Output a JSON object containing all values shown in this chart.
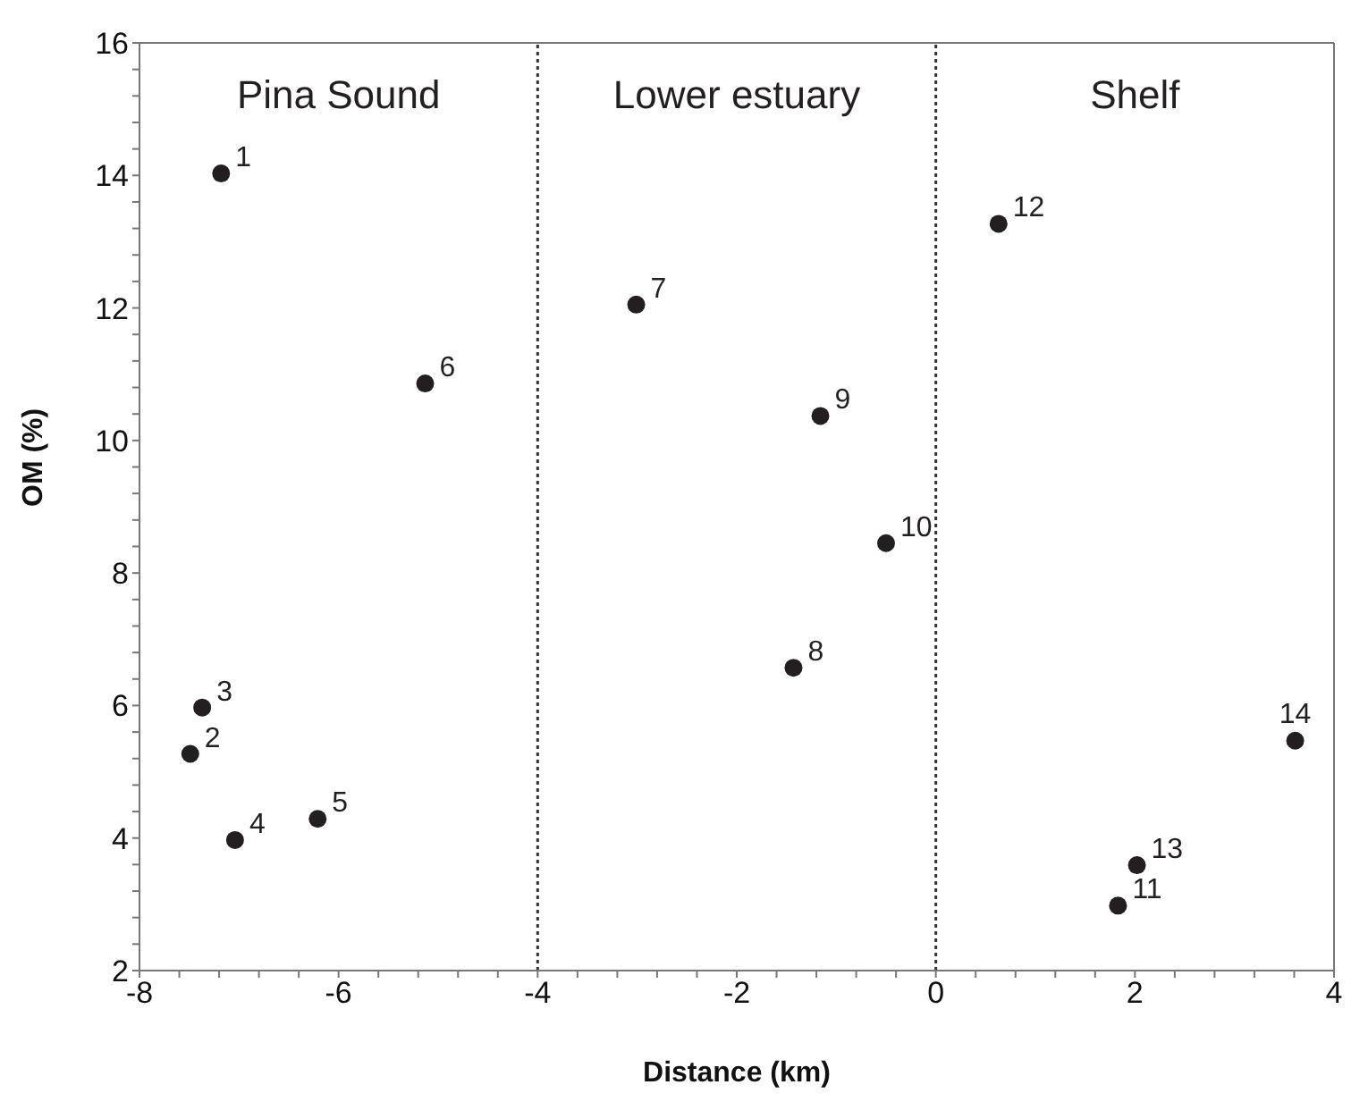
{
  "chart_data": {
    "type": "scatter",
    "xlabel": "Distance (km)",
    "ylabel": "OM (%)",
    "x": [
      -7.18,
      -7.49,
      -7.37,
      -7.04,
      -6.21,
      -5.13,
      -3.01,
      -1.43,
      -1.16,
      -0.5,
      1.83,
      0.63,
      2.02,
      3.61
    ],
    "series": [
      {
        "color": "#231f20",
        "values": [
          14.03,
          5.27,
          5.97,
          3.97,
          4.29,
          10.86,
          12.05,
          6.57,
          10.37,
          8.45,
          2.98,
          13.27,
          3.59,
          5.47
        ]
      }
    ],
    "marker": "circle",
    "xlim": [
      -8,
      4
    ],
    "ylim": [
      2,
      16
    ],
    "xticks": [
      -8,
      {
        "value": -7.6,
        "label": null
      },
      {
        "value": -7.2,
        "label": null
      },
      {
        "value": -6.8,
        "label": null
      },
      {
        "value": -6.4,
        "label": null
      },
      -6,
      {
        "value": -5.6,
        "label": null
      },
      {
        "value": -5.2,
        "label": null
      },
      {
        "value": -4.8,
        "label": null
      },
      {
        "value": -4.4,
        "label": null
      },
      -4,
      {
        "value": -3.6,
        "label": null
      },
      {
        "value": -3.2,
        "label": null
      },
      {
        "value": -2.8,
        "label": null
      },
      {
        "value": -2.4,
        "label": null
      },
      -2,
      {
        "value": -1.6,
        "label": null
      },
      {
        "value": -1.2,
        "label": null
      },
      {
        "value": -0.8,
        "label": null
      },
      {
        "value": -0.4,
        "label": null
      },
      0,
      {
        "value": 0.4,
        "label": null
      },
      {
        "value": 0.8,
        "label": null
      },
      {
        "value": 1.2,
        "label": null
      },
      {
        "value": 1.6,
        "label": null
      },
      2,
      {
        "value": 2.4,
        "label": null
      },
      {
        "value": 2.8,
        "label": null
      },
      {
        "value": 3.2,
        "label": null
      },
      {
        "value": 3.6,
        "label": null
      },
      4
    ],
    "yticks": [
      2,
      {
        "value": 2.4,
        "label": null
      },
      {
        "value": 2.8,
        "label": null
      },
      {
        "value": 3.2,
        "label": null
      },
      {
        "value": 3.6,
        "label": null
      },
      4,
      {
        "value": 4.4,
        "label": null
      },
      {
        "value": 4.8,
        "label": null
      },
      {
        "value": 5.2,
        "label": null
      },
      {
        "value": 5.6,
        "label": null
      },
      6,
      {
        "value": 6.4,
        "label": null
      },
      {
        "value": 6.8,
        "label": null
      },
      {
        "value": 7.2,
        "label": null
      },
      {
        "value": 7.6,
        "label": null
      },
      8,
      {
        "value": 8.4,
        "label": null
      },
      {
        "value": 8.8,
        "label": null
      },
      {
        "value": 9.2,
        "label": null
      },
      {
        "value": 9.6,
        "label": null
      },
      10,
      {
        "value": 10.4,
        "label": null
      },
      {
        "value": 10.8,
        "label": null
      },
      {
        "value": 11.2,
        "label": null
      },
      {
        "value": 11.6,
        "label": null
      },
      12,
      {
        "value": 12.4,
        "label": null
      },
      {
        "value": 12.8,
        "label": null
      },
      {
        "value": 13.2,
        "label": null
      },
      {
        "value": 13.6,
        "label": null
      },
      14,
      {
        "value": 14.4,
        "label": null
      },
      {
        "value": 14.8,
        "label": null
      },
      {
        "value": 15.2,
        "label": null
      },
      {
        "value": 15.6,
        "label": null
      },
      16
    ],
    "ref_lines": [
      {
        "axis": "x",
        "value": -4,
        "line_style": "dotted"
      },
      {
        "axis": "x",
        "value": 0,
        "line_style": "dotted"
      }
    ],
    "annotations": [
      "Pina Sound",
      "Lower estuary",
      "Shelf",
      {
        "text": "1",
        "x": -7.18,
        "y": 14.03
      },
      {
        "text": "2",
        "x": -7.49,
        "y": 5.27
      },
      {
        "text": "3",
        "x": -7.37,
        "y": 5.97
      },
      {
        "text": "4",
        "x": -7.04,
        "y": 3.97
      },
      {
        "text": "5",
        "x": -6.21,
        "y": 4.29
      },
      {
        "text": "6",
        "x": -5.13,
        "y": 10.86
      },
      {
        "text": "7",
        "x": -3.01,
        "y": 12.05
      },
      {
        "text": "8",
        "x": -1.43,
        "y": 6.57
      },
      {
        "text": "9",
        "x": -1.16,
        "y": 10.37
      },
      {
        "text": "10",
        "x": -0.5,
        "y": 8.45
      },
      {
        "text": "11",
        "x": 1.83,
        "y": 2.98
      },
      {
        "text": "12",
        "x": 0.63,
        "y": 13.27
      },
      {
        "text": "13",
        "x": 2.02,
        "y": 3.59
      },
      {
        "text": "14",
        "x": 3.61,
        "y": 5.47
      }
    ]
  }
}
